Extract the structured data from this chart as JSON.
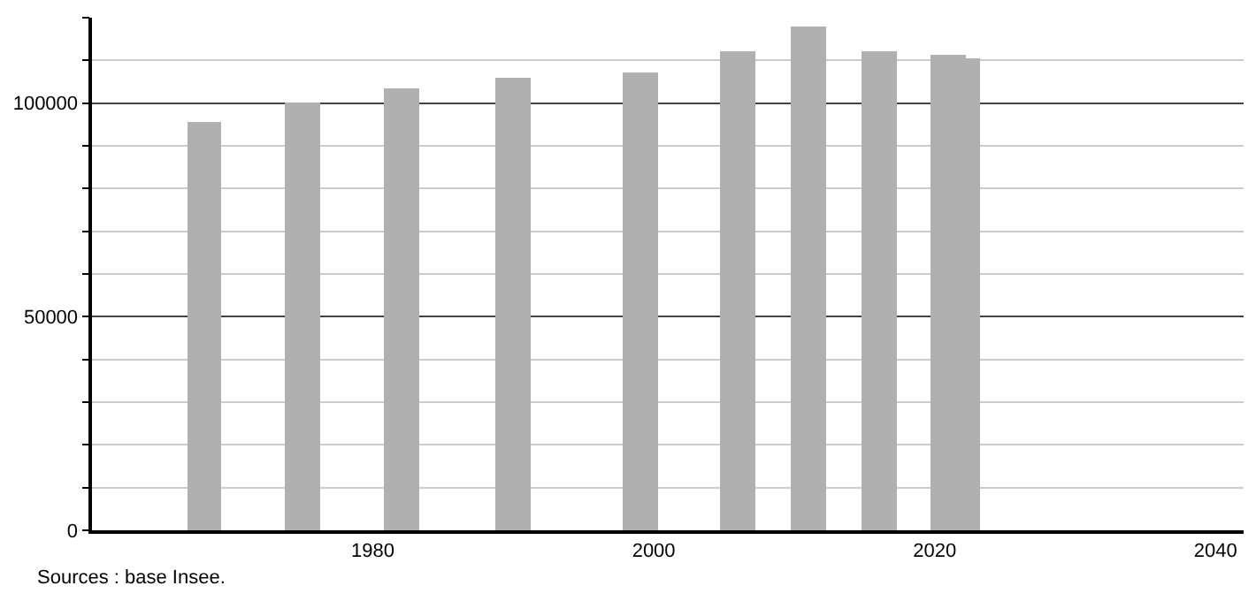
{
  "chart_data": {
    "type": "bar",
    "x": [
      1968,
      1975,
      1982,
      1990,
      1999,
      2006,
      2011,
      2016,
      2021,
      2022
    ],
    "values": [
      95700,
      100300,
      103300,
      105800,
      107000,
      112000,
      117800,
      112000,
      111200,
      110400
    ],
    "color": "#b0b0b0",
    "xlim": [
      1960,
      2042
    ],
    "xticks": [
      1980,
      2000,
      2020,
      2040
    ],
    "ylim": [
      0,
      120000
    ],
    "yticks": [
      0,
      {
        "value": 10000,
        "label": null
      },
      {
        "value": 20000,
        "label": null
      },
      {
        "value": 30000,
        "label": null
      },
      {
        "value": 40000,
        "label": null
      },
      50000,
      {
        "value": 60000,
        "label": null
      },
      {
        "value": 70000,
        "label": null
      },
      {
        "value": 80000,
        "label": null
      },
      {
        "value": 90000,
        "label": null
      },
      100000,
      {
        "value": 110000,
        "label": null
      },
      {
        "value": 120000,
        "label": null
      }
    ],
    "grid": "y",
    "annotations": [
      "Sources : base Insee."
    ]
  }
}
